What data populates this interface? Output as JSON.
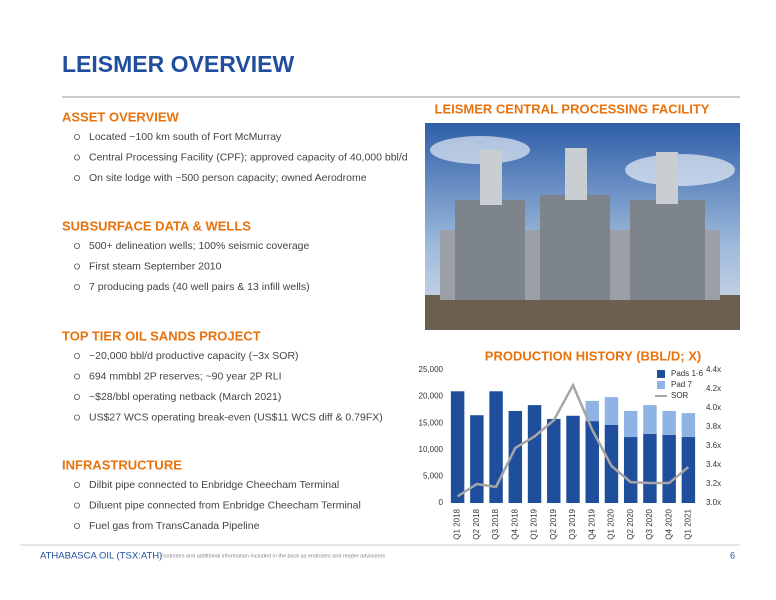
{
  "header": {
    "title": "LEISMER OVERVIEW"
  },
  "sections": [
    {
      "heading": "ASSET OVERVIEW",
      "bullets": [
        "Located ~100 km south of Fort McMurray",
        "Central Processing Facility (CPF); approved capacity of 40,000 bbl/d",
        "On site lodge with ~500 person capacity; owned Aerodrome"
      ]
    },
    {
      "heading": "SUBSURFACE DATA & WELLS",
      "bullets": [
        "500+ delineation wells; 100% seismic coverage",
        "First steam September 2010",
        "7 producing pads (40 well pairs & 13 infill wells)"
      ]
    },
    {
      "heading": "TOP TIER OIL SANDS PROJECT",
      "bullets": [
        "~20,000 bbl/d productive capacity (~3x SOR)",
        "694 mmbbl 2P reserves; ~90 year 2P RLI",
        "~$28/bbl operating netback (March 2021)",
        "US$27 WCS operating break-even (US$11 WCS diff & 0.79FX)"
      ]
    },
    {
      "heading": "INFRASTRUCTURE",
      "bullets": [
        "Dilbit pipe connected to Enbridge Cheecham Terminal",
        "Diluent pipe connected from Enbridge Cheecham Terminal",
        "Fuel gas from TransCanada Pipeline"
      ]
    }
  ],
  "photo": {
    "title": "LEISMER CENTRAL PROCESSING FACILITY"
  },
  "chart_data": {
    "type": "bar",
    "stacked": true,
    "title": "PRODUCTION HISTORY (BBL/D; X)",
    "categories": [
      "Q1 2018",
      "Q2 2018",
      "Q3 2018",
      "Q4 2018",
      "Q1 2019",
      "Q2 2019",
      "Q3 2019",
      "Q4 2019",
      "Q1 2020",
      "Q2 2020",
      "Q3 2020",
      "Q4 2020",
      "Q1 2021"
    ],
    "series": [
      {
        "name": "Pads 1-6",
        "color": "#1f4e9c",
        "values": [
          21000,
          16500,
          21000,
          17300,
          18400,
          15800,
          16400,
          15400,
          14700,
          12400,
          13000,
          12800,
          12400
        ]
      },
      {
        "name": "Pad 7",
        "color": "#8fb4e3",
        "values": [
          null,
          null,
          null,
          null,
          null,
          null,
          null,
          3800,
          5200,
          4900,
          5400,
          4500,
          4500
        ]
      },
      {
        "name": "SOR",
        "type": "line",
        "axis": "y2",
        "color": "#a6a6a6",
        "values": [
          3.07,
          3.2,
          3.17,
          3.58,
          3.7,
          3.87,
          4.24,
          3.77,
          3.39,
          3.22,
          3.21,
          3.21,
          3.38
        ]
      }
    ],
    "ylim": [
      0,
      25000
    ],
    "yticks": [
      0,
      {
        "value": 5000,
        "label": "5,000"
      },
      {
        "value": 10000,
        "label": "10,000"
      },
      {
        "value": 15000,
        "label": "15,000"
      },
      {
        "value": 20000,
        "label": "20,000"
      },
      {
        "value": 25000,
        "label": "25,000"
      }
    ],
    "y2lim": [
      3.0,
      4.4
    ],
    "y2ticks": [
      {
        "value": 3.0,
        "label": "3.0x"
      },
      {
        "value": 3.2,
        "label": "3.2x"
      },
      {
        "value": 3.4,
        "label": "3.4x"
      },
      {
        "value": 3.6,
        "label": "3.6x"
      },
      {
        "value": 3.8,
        "label": "3.8x"
      },
      {
        "value": 4.0,
        "label": "4.0x"
      },
      {
        "value": 4.2,
        "label": "4.2x"
      },
      {
        "value": 4.4,
        "label": "4.4x"
      }
    ],
    "legend": "upper right"
  },
  "footer": {
    "company": "ATHABASCA OIL (TSX:ATH)",
    "note": "Footnotes and additional information included in the back as endnotes and reader advisories",
    "page": "6"
  }
}
